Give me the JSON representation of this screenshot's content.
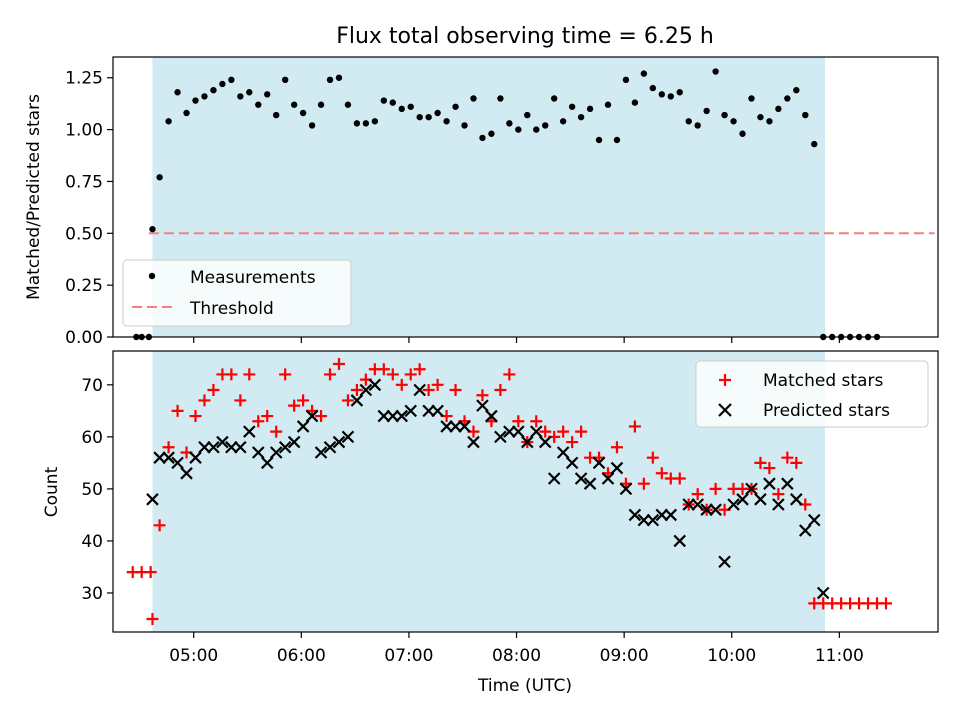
{
  "chart_data": [
    {
      "type": "scatter",
      "title": "Flux total observing time = 6.25 h",
      "xlabel": "",
      "ylabel": "Matched/Predicted stars",
      "ylim": [
        0,
        1.35
      ],
      "xlim": [
        "04:15",
        "11:55"
      ],
      "ytick_labels": [
        "0.00",
        "0.25",
        "0.50",
        "0.75",
        "1.00",
        "1.25"
      ],
      "yticks": [
        0,
        0.25,
        0.5,
        0.75,
        1.0,
        1.25
      ],
      "legend": {
        "placement": "lower-left",
        "entries": [
          "Measurements",
          "Threshold"
        ]
      },
      "shaded_span": [
        "04:37",
        "10:52"
      ],
      "threshold": {
        "y": 0.5,
        "x_start": "04:35",
        "x_end": "11:53",
        "color": "#f47f7f"
      },
      "series": [
        {
          "name": "Measurements",
          "marker": "dot",
          "color": "#000000",
          "x": [
            "04:28",
            "04:31",
            "04:35",
            "04:37",
            "04:41",
            "04:46",
            "04:51",
            "04:56",
            "05:01",
            "05:06",
            "05:11",
            "05:16",
            "05:21",
            "05:26",
            "05:31",
            "05:36",
            "05:41",
            "05:46",
            "05:51",
            "05:56",
            "06:01",
            "06:06",
            "06:11",
            "06:16",
            "06:21",
            "06:26",
            "06:31",
            "06:36",
            "06:41",
            "06:46",
            "06:51",
            "06:56",
            "07:01",
            "07:06",
            "07:11",
            "07:16",
            "07:21",
            "07:26",
            "07:31",
            "07:36",
            "07:41",
            "07:46",
            "07:51",
            "07:56",
            "08:01",
            "08:06",
            "08:11",
            "08:16",
            "08:21",
            "08:26",
            "08:31",
            "08:36",
            "08:41",
            "08:46",
            "08:51",
            "08:56",
            "09:01",
            "09:06",
            "09:11",
            "09:16",
            "09:21",
            "09:26",
            "09:31",
            "09:36",
            "09:41",
            "09:46",
            "09:51",
            "09:56",
            "10:01",
            "10:06",
            "10:11",
            "10:16",
            "10:21",
            "10:26",
            "10:31",
            "10:36",
            "10:41",
            "10:46",
            "10:51",
            "10:56",
            "11:01",
            "11:06",
            "11:11",
            "11:16",
            "11:21"
          ],
          "y": [
            0,
            0,
            0,
            0.52,
            0.77,
            1.04,
            1.18,
            1.08,
            1.14,
            1.16,
            1.19,
            1.22,
            1.24,
            1.16,
            1.18,
            1.12,
            1.17,
            1.07,
            1.24,
            1.12,
            1.08,
            1.02,
            1.12,
            1.24,
            1.25,
            1.12,
            1.03,
            1.03,
            1.04,
            1.14,
            1.13,
            1.1,
            1.11,
            1.06,
            1.06,
            1.08,
            1.04,
            1.11,
            1.02,
            1.15,
            0.96,
            0.98,
            1.15,
            1.03,
            1.0,
            1.07,
            1.0,
            1.02,
            1.15,
            1.04,
            1.11,
            1.06,
            1.1,
            0.95,
            1.12,
            0.95,
            1.24,
            1.13,
            1.27,
            1.2,
            1.17,
            1.16,
            1.18,
            1.04,
            1.02,
            1.09,
            1.28,
            1.07,
            1.04,
            0.98,
            1.15,
            1.06,
            1.04,
            1.1,
            1.15,
            1.19,
            1.07,
            0.93,
            0,
            0,
            0,
            0,
            0,
            0,
            0
          ]
        },
        {
          "name": "Threshold",
          "marker": "dashed-line",
          "color": "#f47f7f",
          "x": [
            "04:35",
            "11:53"
          ],
          "y": [
            0.5,
            0.5
          ]
        }
      ]
    },
    {
      "type": "scatter",
      "title": "",
      "xlabel": "Time (UTC)",
      "ylabel": "Count",
      "ylim": [
        22.5,
        76.5
      ],
      "xlim": [
        "04:15",
        "11:55"
      ],
      "xtick_labels": [
        "05:00",
        "06:00",
        "07:00",
        "08:00",
        "09:00",
        "10:00",
        "11:00"
      ],
      "ytick_labels": [
        "30",
        "40",
        "50",
        "60",
        "70"
      ],
      "yticks": [
        30,
        40,
        50,
        60,
        70
      ],
      "legend": {
        "placement": "top-right",
        "entries": [
          "Matched stars",
          "Predicted stars"
        ]
      },
      "shaded_span": [
        "04:37",
        "10:52"
      ],
      "series": [
        {
          "name": "Matched stars",
          "marker": "plus",
          "color": "#ff0000",
          "x": [
            "04:26",
            "04:31",
            "04:36",
            "04:37",
            "04:41",
            "04:46",
            "04:51",
            "04:56",
            "05:01",
            "05:06",
            "05:11",
            "05:16",
            "05:21",
            "05:26",
            "05:31",
            "05:36",
            "05:41",
            "05:46",
            "05:51",
            "05:56",
            "06:01",
            "06:06",
            "06:11",
            "06:16",
            "06:21",
            "06:26",
            "06:31",
            "06:36",
            "06:41",
            "06:46",
            "06:51",
            "06:56",
            "07:01",
            "07:06",
            "07:11",
            "07:16",
            "07:21",
            "07:26",
            "07:31",
            "07:36",
            "07:41",
            "07:46",
            "07:51",
            "07:56",
            "08:01",
            "08:06",
            "08:11",
            "08:16",
            "08:21",
            "08:26",
            "08:31",
            "08:36",
            "08:41",
            "08:46",
            "08:51",
            "08:56",
            "09:01",
            "09:06",
            "09:11",
            "09:16",
            "09:21",
            "09:26",
            "09:31",
            "09:36",
            "09:41",
            "09:46",
            "09:51",
            "09:56",
            "10:01",
            "10:06",
            "10:11",
            "10:16",
            "10:21",
            "10:26",
            "10:31",
            "10:36",
            "10:41",
            "10:46",
            "10:51",
            "10:56",
            "11:01",
            "11:06",
            "11:11",
            "11:16",
            "11:21",
            "11:26"
          ],
          "y": [
            34,
            34,
            34,
            25,
            43,
            58,
            65,
            57,
            64,
            67,
            69,
            72,
            72,
            67,
            72,
            63,
            64,
            61,
            72,
            66,
            67,
            65,
            64,
            72,
            74,
            67,
            69,
            71,
            73,
            73,
            72,
            70,
            72,
            73,
            69,
            70,
            64,
            69,
            63,
            61,
            68,
            63,
            69,
            72,
            63,
            59,
            63,
            61,
            60,
            61,
            59,
            61,
            56,
            56,
            53,
            58,
            51,
            62,
            51,
            56,
            53,
            52,
            52,
            47,
            49,
            46,
            50,
            46,
            50,
            50,
            50,
            55,
            54,
            49,
            56,
            55,
            47,
            28,
            28,
            28,
            28,
            28,
            28,
            28,
            28,
            28
          ]
        },
        {
          "name": "Predicted stars",
          "marker": "x",
          "color": "#000000",
          "x": [
            "04:37",
            "04:41",
            "04:46",
            "04:51",
            "04:56",
            "05:01",
            "05:06",
            "05:11",
            "05:16",
            "05:21",
            "05:26",
            "05:31",
            "05:36",
            "05:41",
            "05:46",
            "05:51",
            "05:56",
            "06:01",
            "06:06",
            "06:11",
            "06:16",
            "06:21",
            "06:26",
            "06:31",
            "06:36",
            "06:41",
            "06:46",
            "06:51",
            "06:56",
            "07:01",
            "07:06",
            "07:11",
            "07:16",
            "07:21",
            "07:26",
            "07:31",
            "07:36",
            "07:41",
            "07:46",
            "07:51",
            "07:56",
            "08:01",
            "08:06",
            "08:11",
            "08:16",
            "08:21",
            "08:26",
            "08:31",
            "08:36",
            "08:41",
            "08:46",
            "08:51",
            "08:56",
            "09:01",
            "09:06",
            "09:11",
            "09:16",
            "09:21",
            "09:26",
            "09:31",
            "09:36",
            "09:41",
            "09:46",
            "09:51",
            "09:56",
            "10:01",
            "10:06",
            "10:11",
            "10:16",
            "10:21",
            "10:26",
            "10:31",
            "10:36",
            "10:41",
            "10:46",
            "10:51"
          ],
          "y": [
            48,
            56,
            56,
            55,
            53,
            56,
            58,
            58,
            59,
            58,
            58,
            61,
            57,
            55,
            57,
            58,
            59,
            62,
            64,
            57,
            58,
            59,
            60,
            67,
            69,
            70,
            64,
            64,
            64,
            65,
            69,
            65,
            65,
            62,
            62,
            62,
            59,
            66,
            64,
            60,
            61,
            61,
            59,
            61,
            59,
            52,
            57,
            55,
            52,
            51,
            55,
            52,
            54,
            50,
            45,
            44,
            44,
            45,
            45,
            40,
            47,
            47,
            46,
            46,
            36,
            47,
            48,
            50,
            48,
            51,
            47,
            51,
            48,
            42,
            44,
            30
          ]
        }
      ]
    }
  ]
}
